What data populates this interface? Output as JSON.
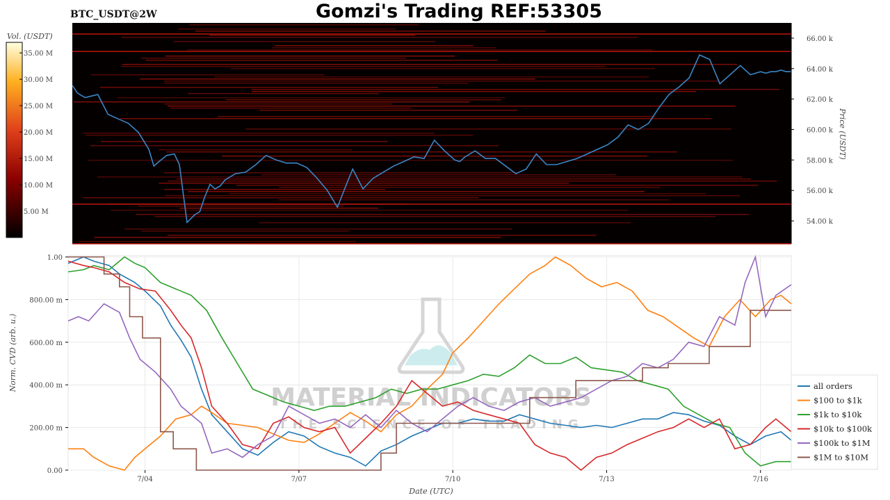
{
  "header": {
    "pair_label": "BTC_USDT@2W",
    "title": "Gomzi's Trading REF:53305"
  },
  "watermark": {
    "main": "MATERIAL INDICATORS",
    "sub": "THE SCIENCE OF TRADING"
  },
  "colorbar": {
    "label": "Vol. (USDT)",
    "ticks": [
      "35.00 M",
      "30.00 M",
      "25.00 M",
      "20.00 M",
      "15.00 M",
      "10.00 M",
      "5.00 M"
    ],
    "tick_values": [
      35,
      30,
      25,
      20,
      15,
      10,
      5
    ],
    "range": [
      0,
      37
    ]
  },
  "colors": {
    "price_line": "#3a86c6",
    "heatmap_bg": "#050000",
    "all orders": "#1f77b4",
    "$100 to $1k": "#ff7f0e",
    "$1k to $10k": "#2ca02c",
    "$10k to $100k": "#d62728",
    "$100k to $1M": "#9467bd",
    "$1M to $10M": "#8c564b"
  },
  "chart_data": [
    {
      "type": "line",
      "panel": "price-heatmap",
      "ylabel": "Price (USDT)",
      "ylim": [
        52.5,
        67.0
      ],
      "y_ticks": [
        "54.00 k",
        "56.00 k",
        "58.00 k",
        "60.00 k",
        "62.00 k",
        "64.00 k",
        "66.00 k"
      ],
      "y_tick_values": [
        54,
        56,
        58,
        60,
        62,
        64,
        66
      ],
      "xlim": [
        2.5,
        16.6
      ],
      "series": [
        {
          "x": [
            2.5,
            2.6,
            2.75,
            3.0,
            3.2,
            3.4,
            3.6,
            3.8,
            4.0,
            4.1,
            4.2,
            4.35,
            4.5,
            4.6,
            4.75,
            4.9,
            5.0,
            5.1,
            5.2,
            5.3,
            5.4,
            5.5,
            5.7,
            5.9,
            6.1,
            6.3,
            6.5,
            6.7,
            6.9,
            7.1,
            7.3,
            7.5,
            7.7,
            7.9,
            8.0,
            8.2,
            8.4,
            8.6,
            8.8,
            9.0,
            9.2,
            9.4,
            9.6,
            9.8,
            10.0,
            10.1,
            10.2,
            10.4,
            10.6,
            10.8,
            11.0,
            11.2,
            11.4,
            11.6,
            11.8,
            12.0,
            12.2,
            12.4,
            12.6,
            12.8,
            13.0,
            13.2,
            13.4,
            13.6,
            13.8,
            14.0,
            14.2,
            14.4,
            14.6,
            14.8,
            15.0,
            15.2,
            15.4,
            15.6,
            15.8,
            16.0,
            16.1,
            16.2,
            16.3,
            16.4,
            16.5,
            16.6
          ],
          "y": [
            62.9,
            62.4,
            62.1,
            62.3,
            61.0,
            60.7,
            60.4,
            59.8,
            58.7,
            57.6,
            57.9,
            58.3,
            58.4,
            57.7,
            53.9,
            54.4,
            54.6,
            55.6,
            56.4,
            56.1,
            56.3,
            56.7,
            57.1,
            57.2,
            57.7,
            58.3,
            58.0,
            57.8,
            57.8,
            57.5,
            56.8,
            56.0,
            54.9,
            56.6,
            57.4,
            56.1,
            56.8,
            57.2,
            57.6,
            57.9,
            58.2,
            58.1,
            59.3,
            58.6,
            58.0,
            57.9,
            58.2,
            58.6,
            58.1,
            58.1,
            57.6,
            57.1,
            57.4,
            58.4,
            57.7,
            57.7,
            57.9,
            58.1,
            58.4,
            58.7,
            59.0,
            59.5,
            60.3,
            60.0,
            60.4,
            61.4,
            62.3,
            62.8,
            63.4,
            64.9,
            64.6,
            63.0,
            63.6,
            64.2,
            63.6,
            63.8,
            63.7,
            63.8,
            63.8,
            63.9,
            63.8,
            63.8
          ]
        }
      ]
    },
    {
      "type": "line",
      "panel": "cvd",
      "xlabel": "Date (UTC)",
      "ylabel": "Norm. CVD (arb. u.)",
      "ylim": [
        0,
        1.0
      ],
      "y_ticks": [
        "0.00",
        "200.00 m",
        "400.00 m",
        "600.00 m",
        "800.00 m",
        "1.00"
      ],
      "y_tick_values": [
        0,
        0.2,
        0.4,
        0.6,
        0.8,
        1.0
      ],
      "xlim": [
        2.5,
        16.6
      ],
      "x_ticks": [
        "7/04",
        "7/07",
        "7/10",
        "7/13",
        "7/16"
      ],
      "x_tick_values": [
        4,
        7,
        10,
        13,
        16
      ],
      "grid": true,
      "legend": "bottom-right",
      "series": [
        {
          "name": "all orders",
          "x": [
            2.5,
            2.8,
            3.0,
            3.3,
            3.5,
            3.8,
            4.0,
            4.3,
            4.5,
            4.7,
            4.9,
            5.1,
            5.3,
            5.6,
            5.9,
            6.2,
            6.5,
            6.8,
            7.1,
            7.4,
            7.7,
            8.0,
            8.3,
            8.6,
            8.9,
            9.2,
            9.5,
            9.8,
            10.1,
            10.4,
            10.7,
            11.0,
            11.3,
            11.6,
            11.9,
            12.2,
            12.5,
            12.8,
            13.1,
            13.4,
            13.7,
            14.0,
            14.3,
            14.6,
            14.9,
            15.2,
            15.5,
            15.8,
            16.1,
            16.4,
            16.6
          ],
          "y": [
            0.97,
            1.0,
            0.98,
            0.96,
            0.92,
            0.88,
            0.84,
            0.77,
            0.68,
            0.61,
            0.53,
            0.38,
            0.26,
            0.18,
            0.1,
            0.07,
            0.13,
            0.18,
            0.16,
            0.11,
            0.08,
            0.06,
            0.02,
            0.09,
            0.12,
            0.16,
            0.19,
            0.22,
            0.22,
            0.24,
            0.23,
            0.23,
            0.26,
            0.24,
            0.22,
            0.21,
            0.2,
            0.21,
            0.2,
            0.22,
            0.24,
            0.24,
            0.27,
            0.26,
            0.23,
            0.21,
            0.16,
            0.12,
            0.16,
            0.18,
            0.14
          ]
        },
        {
          "name": "$100 to $1k",
          "x": [
            2.5,
            2.8,
            3.0,
            3.3,
            3.6,
            3.8,
            4.0,
            4.3,
            4.6,
            4.9,
            5.1,
            5.3,
            5.6,
            5.9,
            6.2,
            6.5,
            6.8,
            7.1,
            7.4,
            7.7,
            8.0,
            8.3,
            8.6,
            8.9,
            9.2,
            9.5,
            9.8,
            10.0,
            10.3,
            10.6,
            10.9,
            11.2,
            11.5,
            11.8,
            12.0,
            12.3,
            12.6,
            12.9,
            13.2,
            13.5,
            13.8,
            14.1,
            14.4,
            14.7,
            15.0,
            15.3,
            15.6,
            15.9,
            16.2,
            16.4,
            16.6
          ],
          "y": [
            0.1,
            0.1,
            0.06,
            0.02,
            0.0,
            0.06,
            0.1,
            0.16,
            0.24,
            0.26,
            0.3,
            0.27,
            0.22,
            0.21,
            0.2,
            0.17,
            0.14,
            0.13,
            0.17,
            0.22,
            0.27,
            0.23,
            0.18,
            0.26,
            0.3,
            0.38,
            0.45,
            0.55,
            0.62,
            0.7,
            0.78,
            0.85,
            0.92,
            0.96,
            1.0,
            0.96,
            0.9,
            0.86,
            0.88,
            0.84,
            0.75,
            0.72,
            0.67,
            0.62,
            0.58,
            0.72,
            0.8,
            0.72,
            0.8,
            0.82,
            0.78
          ]
        },
        {
          "name": "$1k to $10k",
          "x": [
            2.5,
            2.8,
            3.0,
            3.3,
            3.6,
            3.8,
            4.0,
            4.3,
            4.6,
            4.9,
            5.2,
            5.5,
            5.8,
            6.1,
            6.4,
            6.7,
            7.0,
            7.3,
            7.6,
            7.9,
            8.2,
            8.5,
            8.8,
            9.1,
            9.4,
            9.7,
            10.0,
            10.3,
            10.6,
            10.9,
            11.2,
            11.5,
            11.8,
            12.1,
            12.4,
            12.7,
            13.0,
            13.3,
            13.6,
            13.9,
            14.2,
            14.5,
            14.8,
            15.1,
            15.4,
            15.7,
            16.0,
            16.3,
            16.6
          ],
          "y": [
            0.93,
            0.94,
            0.96,
            0.94,
            1.0,
            0.97,
            0.95,
            0.88,
            0.85,
            0.82,
            0.75,
            0.62,
            0.5,
            0.38,
            0.35,
            0.32,
            0.3,
            0.28,
            0.3,
            0.3,
            0.32,
            0.34,
            0.38,
            0.36,
            0.38,
            0.38,
            0.4,
            0.42,
            0.45,
            0.44,
            0.48,
            0.54,
            0.5,
            0.5,
            0.53,
            0.48,
            0.47,
            0.46,
            0.42,
            0.4,
            0.38,
            0.3,
            0.26,
            0.22,
            0.2,
            0.08,
            0.02,
            0.04,
            0.04
          ]
        },
        {
          "name": "$10k to $100k",
          "x": [
            2.5,
            2.8,
            3.0,
            3.3,
            3.6,
            3.9,
            4.2,
            4.5,
            4.7,
            4.9,
            5.1,
            5.3,
            5.6,
            5.9,
            6.2,
            6.5,
            6.8,
            7.1,
            7.4,
            7.7,
            8.0,
            8.3,
            8.6,
            8.9,
            9.2,
            9.5,
            9.8,
            10.1,
            10.4,
            10.7,
            11.0,
            11.3,
            11.6,
            11.9,
            12.2,
            12.5,
            12.8,
            13.1,
            13.4,
            13.7,
            14.0,
            14.3,
            14.6,
            14.9,
            15.2,
            15.5,
            15.8,
            16.1,
            16.3,
            16.6
          ],
          "y": [
            0.98,
            0.96,
            0.95,
            0.93,
            0.88,
            0.85,
            0.84,
            0.75,
            0.68,
            0.62,
            0.48,
            0.3,
            0.22,
            0.12,
            0.1,
            0.22,
            0.25,
            0.2,
            0.18,
            0.2,
            0.08,
            0.15,
            0.22,
            0.3,
            0.42,
            0.36,
            0.3,
            0.32,
            0.28,
            0.26,
            0.24,
            0.22,
            0.12,
            0.08,
            0.06,
            0.0,
            0.06,
            0.08,
            0.12,
            0.15,
            0.18,
            0.2,
            0.24,
            0.2,
            0.24,
            0.1,
            0.12,
            0.2,
            0.24,
            0.18
          ]
        },
        {
          "name": "$100k to $1M",
          "x": [
            2.5,
            2.7,
            2.9,
            3.2,
            3.5,
            3.7,
            3.9,
            4.2,
            4.5,
            4.7,
            4.9,
            5.1,
            5.3,
            5.6,
            5.9,
            6.2,
            6.5,
            6.8,
            7.1,
            7.4,
            7.7,
            8.0,
            8.3,
            8.6,
            8.9,
            9.2,
            9.5,
            9.8,
            10.1,
            10.4,
            10.7,
            11.0,
            11.3,
            11.6,
            11.9,
            12.2,
            12.5,
            12.8,
            13.1,
            13.4,
            13.7,
            14.0,
            14.3,
            14.6,
            14.9,
            15.2,
            15.5,
            15.7,
            15.9,
            16.1,
            16.3,
            16.6
          ],
          "y": [
            0.7,
            0.72,
            0.7,
            0.78,
            0.74,
            0.62,
            0.52,
            0.46,
            0.38,
            0.3,
            0.26,
            0.22,
            0.08,
            0.1,
            0.06,
            0.12,
            0.16,
            0.3,
            0.26,
            0.22,
            0.24,
            0.2,
            0.26,
            0.2,
            0.28,
            0.22,
            0.18,
            0.24,
            0.3,
            0.34,
            0.3,
            0.28,
            0.32,
            0.34,
            0.3,
            0.32,
            0.34,
            0.38,
            0.42,
            0.44,
            0.5,
            0.48,
            0.52,
            0.6,
            0.58,
            0.72,
            0.68,
            0.88,
            1.0,
            0.72,
            0.82,
            0.87
          ]
        },
        {
          "name": "$1M to $10M",
          "x": [
            2.5,
            3.2,
            3.2,
            3.5,
            3.5,
            3.7,
            3.7,
            3.95,
            3.95,
            4.3,
            4.3,
            4.55,
            4.55,
            5.0,
            5.0,
            5.4,
            5.4,
            8.6,
            8.6,
            8.9,
            8.9,
            11.5,
            11.5,
            12.4,
            12.4,
            13.7,
            13.7,
            14.2,
            14.2,
            15.0,
            15.0,
            15.8,
            15.8,
            16.6
          ],
          "y": [
            1.0,
            1.0,
            0.92,
            0.92,
            0.86,
            0.86,
            0.72,
            0.72,
            0.62,
            0.62,
            0.18,
            0.18,
            0.1,
            0.1,
            0.0,
            0.0,
            0.0,
            0.0,
            0.08,
            0.08,
            0.22,
            0.22,
            0.34,
            0.34,
            0.42,
            0.42,
            0.48,
            0.48,
            0.5,
            0.5,
            0.58,
            0.58,
            0.75,
            0.75
          ]
        }
      ]
    }
  ]
}
